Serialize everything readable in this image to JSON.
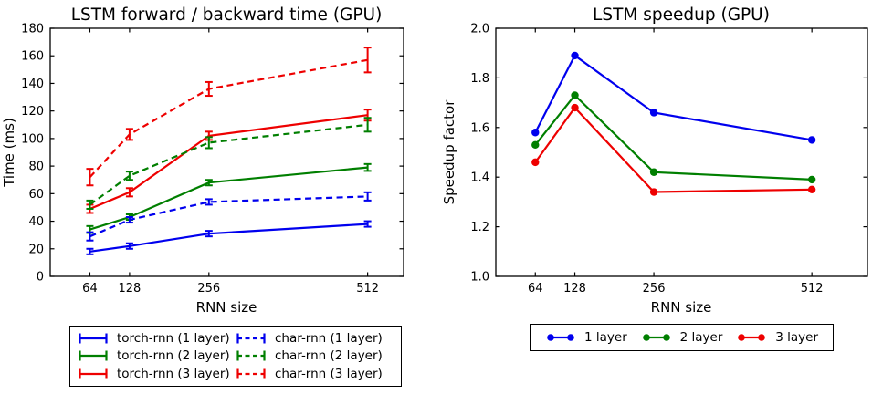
{
  "figure": {
    "background": "#ffffff",
    "axis_color": "#000000",
    "text_color": "#000000"
  },
  "colors": {
    "blue": "#0000ee",
    "green": "#007f00",
    "red": "#ee0000"
  },
  "chart_data": [
    {
      "type": "line",
      "title": "LSTM forward / backward time (GPU)",
      "xlabel": "RNN size",
      "ylabel": "Time (ms)",
      "x": [
        64,
        128,
        256,
        512
      ],
      "xtick_labels": [
        "64",
        "128",
        "256",
        "512"
      ],
      "xlim": [
        0,
        570
      ],
      "ylim": [
        0,
        180
      ],
      "yticks": [
        0,
        20,
        40,
        60,
        80,
        100,
        120,
        140,
        160,
        180
      ],
      "ytick_labels": [
        "0",
        "20",
        "40",
        "60",
        "80",
        "100",
        "120",
        "140",
        "160",
        "180"
      ],
      "grid": false,
      "legend_position": "below",
      "marker": "none",
      "series": [
        {
          "name": "torch-rnn (1 layer)",
          "color": "#0000ee",
          "dash": "solid",
          "values": [
            18,
            22,
            31,
            38
          ],
          "yerr": [
            2,
            2,
            2,
            2
          ]
        },
        {
          "name": "torch-rnn (2 layer)",
          "color": "#007f00",
          "dash": "solid",
          "values": [
            34,
            43,
            68,
            79
          ],
          "yerr": [
            2.5,
            2,
            2,
            2.5
          ]
        },
        {
          "name": "torch-rnn (3 layer)",
          "color": "#ee0000",
          "dash": "solid",
          "values": [
            49,
            61,
            102,
            117
          ],
          "yerr": [
            3,
            3,
            3,
            4
          ]
        },
        {
          "name": "char-rnn (1 layer)",
          "color": "#0000ee",
          "dash": "dashed",
          "values": [
            29,
            41,
            54,
            58
          ],
          "yerr": [
            3,
            2,
            2,
            3
          ]
        },
        {
          "name": "char-rnn (2 layer)",
          "color": "#007f00",
          "dash": "dashed",
          "values": [
            52,
            73,
            97,
            110
          ],
          "yerr": [
            3,
            3,
            4,
            5
          ]
        },
        {
          "name": "char-rnn (3 layer)",
          "color": "#ee0000",
          "dash": "dashed",
          "values": [
            72,
            103,
            136,
            157
          ],
          "yerr": [
            6,
            4,
            5,
            9
          ]
        }
      ]
    },
    {
      "type": "line",
      "title": "LSTM speedup (GPU)",
      "xlabel": "RNN size",
      "ylabel": "Speedup factor",
      "x": [
        64,
        128,
        256,
        512
      ],
      "xtick_labels": [
        "64",
        "128",
        "256",
        "512"
      ],
      "xlim": [
        0,
        602
      ],
      "ylim": [
        1.0,
        2.0
      ],
      "yticks": [
        1.0,
        1.2,
        1.4,
        1.6,
        1.8,
        2.0
      ],
      "ytick_labels": [
        "1.0",
        "1.2",
        "1.4",
        "1.6",
        "1.8",
        "2.0"
      ],
      "grid": false,
      "legend_position": "below",
      "marker": "circle",
      "series": [
        {
          "name": "1 layer",
          "color": "#0000ee",
          "dash": "solid",
          "values": [
            1.58,
            1.89,
            1.66,
            1.55
          ]
        },
        {
          "name": "2 layer",
          "color": "#007f00",
          "dash": "solid",
          "values": [
            1.53,
            1.73,
            1.42,
            1.39
          ]
        },
        {
          "name": "3 layer",
          "color": "#ee0000",
          "dash": "solid",
          "values": [
            1.46,
            1.68,
            1.34,
            1.35
          ]
        }
      ]
    }
  ]
}
